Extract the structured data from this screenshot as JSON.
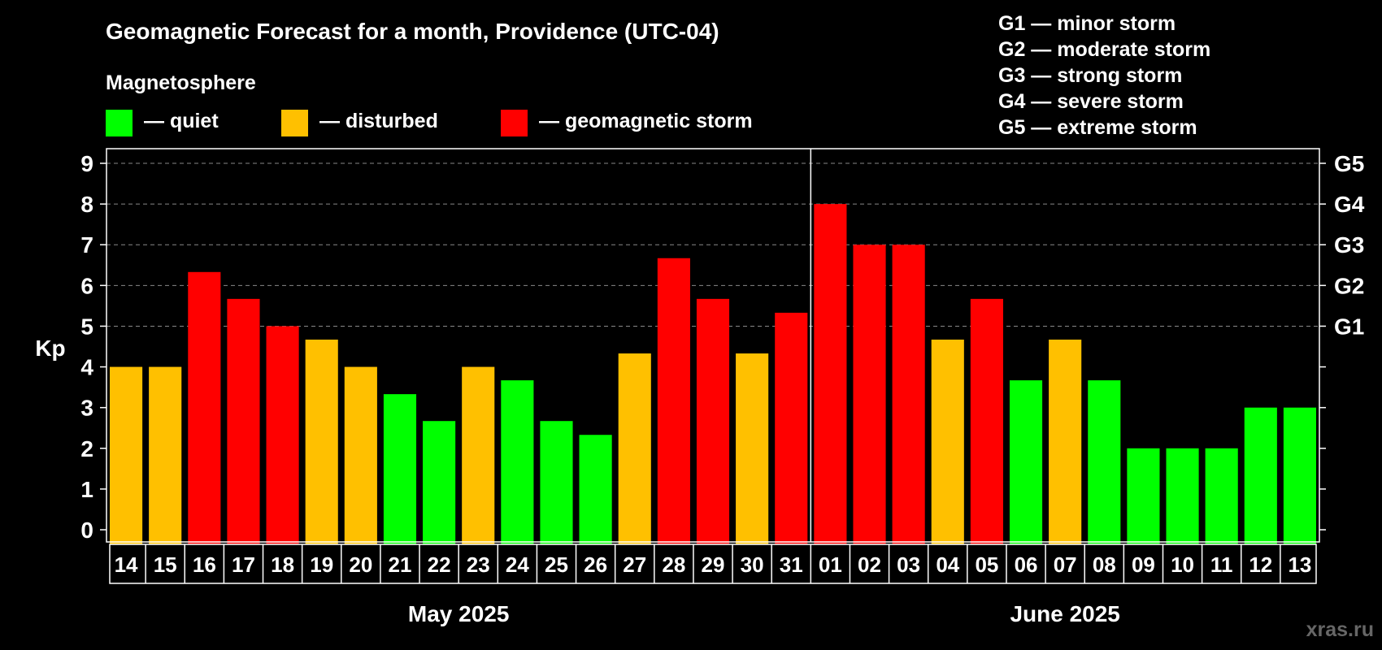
{
  "chart_data": {
    "type": "bar",
    "title": "Geomagnetic Forecast for a month, Providence (UTC-04)",
    "ylabel": "Kp",
    "ylim": [
      0,
      9
    ],
    "y_ticks": [
      "0",
      "1",
      "2",
      "3",
      "4",
      "5",
      "6",
      "7",
      "8",
      "9"
    ],
    "categories": [
      "14",
      "15",
      "16",
      "17",
      "18",
      "19",
      "20",
      "21",
      "22",
      "23",
      "24",
      "25",
      "26",
      "27",
      "28",
      "29",
      "30",
      "31",
      "01",
      "02",
      "03",
      "04",
      "05",
      "06",
      "07",
      "08",
      "09",
      "10",
      "11",
      "12",
      "13"
    ],
    "values": [
      4,
      4,
      6.33,
      5.67,
      5,
      4.67,
      4,
      3.33,
      2.67,
      4,
      3.67,
      2.67,
      2.33,
      4.33,
      6.67,
      5.67,
      4.33,
      5.33,
      8,
      7,
      7,
      4.67,
      5.67,
      3.67,
      4.67,
      3.67,
      2,
      2,
      2,
      3,
      3
    ],
    "months": [
      {
        "label": "May 2025",
        "start_index": 0,
        "count": 18
      },
      {
        "label": "June 2025",
        "start_index": 18,
        "count": 13
      }
    ],
    "thresholds": {
      "quiet_max": 3.67,
      "disturbed_max": 4.67
    },
    "colors": {
      "quiet": "#00ff00",
      "disturbed": "#ffc000",
      "storm": "#ff0000"
    },
    "storm_levels": [
      {
        "label": "G1",
        "kp": 5
      },
      {
        "label": "G2",
        "kp": 6
      },
      {
        "label": "G3",
        "kp": 7
      },
      {
        "label": "G4",
        "kp": 8
      },
      {
        "label": "G5",
        "kp": 9
      }
    ]
  },
  "legend": {
    "heading": "Magnetosphere",
    "items": [
      {
        "key": "quiet",
        "label": "— quiet"
      },
      {
        "key": "disturbed",
        "label": "— disturbed"
      },
      {
        "key": "storm",
        "label": "— geomagnetic storm"
      }
    ]
  },
  "storm_legend": [
    "G1 — minor storm",
    "G2 — moderate storm",
    "G3 — strong storm",
    "G4 — severe storm",
    "G5 — extreme storm"
  ],
  "watermark": "xras.ru"
}
